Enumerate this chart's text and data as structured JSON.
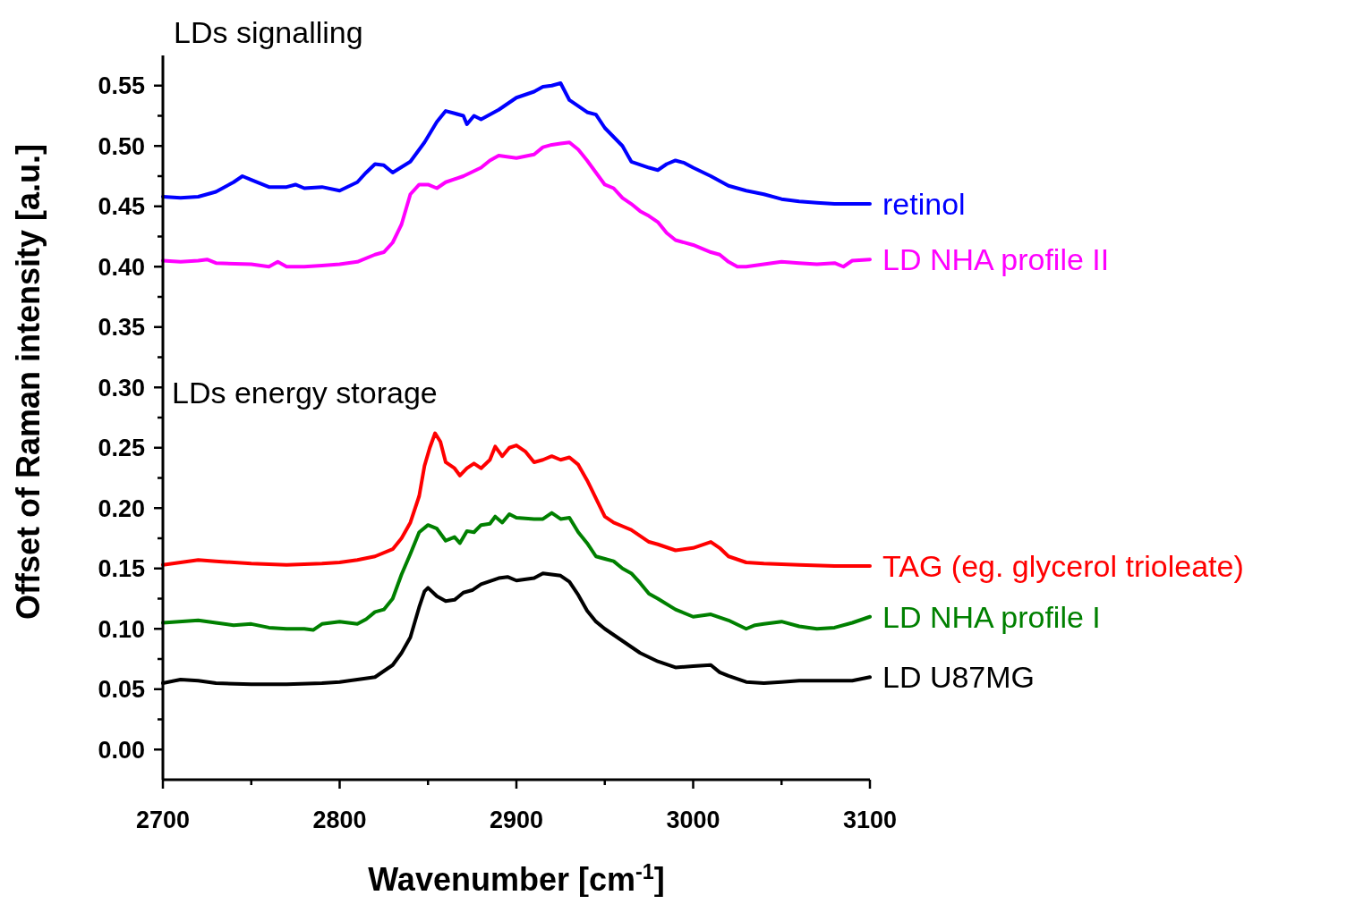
{
  "chart_data": {
    "type": "line",
    "xlabel": "Wavenumber [cm$^{-1}$]",
    "ylabel": "Offset of Raman intensity [a.u.]",
    "annotations": [
      "LDs signalling",
      "LDs energy storage"
    ],
    "xlim": [
      2700,
      3100
    ],
    "xticks": [
      2700,
      {
        "value": 2750,
        "label": null
      },
      2800,
      {
        "value": 2850,
        "label": null
      },
      2900,
      {
        "value": 2950,
        "label": null
      },
      3000,
      {
        "value": 3050,
        "label": null
      },
      3100
    ],
    "ylim": [
      -0.025,
      0.575
    ],
    "yticks": [
      {
        "value": 0,
        "label": "0.00"
      },
      {
        "value": 0.025,
        "label": null
      },
      {
        "value": 0.05,
        "label": "0.05"
      },
      {
        "value": 0.075,
        "label": null
      },
      {
        "value": 0.1,
        "label": "0.10"
      },
      {
        "value": 0.125,
        "label": null
      },
      {
        "value": 0.15,
        "label": "0.15"
      },
      {
        "value": 0.175,
        "label": null
      },
      {
        "value": 0.2,
        "label": "0.20"
      },
      {
        "value": 0.225,
        "label": null
      },
      {
        "value": 0.25,
        "label": "0.25"
      },
      {
        "value": 0.275,
        "label": null
      },
      {
        "value": 0.3,
        "label": "0.30"
      },
      {
        "value": 0.325,
        "label": null
      },
      {
        "value": 0.35,
        "label": "0.35"
      },
      {
        "value": 0.375,
        "label": null
      },
      {
        "value": 0.4,
        "label": "0.40"
      },
      {
        "value": 0.425,
        "label": null
      },
      {
        "value": 0.45,
        "label": "0.45"
      },
      {
        "value": 0.475,
        "label": null
      },
      {
        "value": 0.5,
        "label": "0.50"
      },
      {
        "value": 0.525,
        "label": null
      },
      {
        "value": 0.55,
        "label": "0.55"
      }
    ],
    "grid": false,
    "legend": false,
    "marker": "none",
    "line_style": "solid",
    "series": [
      {
        "name": "retinol",
        "color": "#0000ff",
        "x": [
          2700,
          2710,
          2720,
          2730,
          2740,
          2745,
          2750,
          2760,
          2770,
          2775,
          2780,
          2790,
          2800,
          2810,
          2815,
          2820,
          2825,
          2830,
          2840,
          2848,
          2855,
          2860,
          2865,
          2870,
          2872,
          2876,
          2880,
          2890,
          2900,
          2910,
          2915,
          2920,
          2925,
          2930,
          2935,
          2940,
          2945,
          2950,
          2960,
          2965,
          2975,
          2980,
          2985,
          2990,
          2995,
          3000,
          3010,
          3020,
          3030,
          3040,
          3050,
          3060,
          3070,
          3080,
          3090,
          3100
        ],
        "values": [
          0.458,
          0.457,
          0.458,
          0.462,
          0.47,
          0.475,
          0.472,
          0.466,
          0.466,
          0.468,
          0.465,
          0.466,
          0.463,
          0.47,
          0.478,
          0.485,
          0.484,
          0.478,
          0.487,
          0.503,
          0.52,
          0.529,
          0.527,
          0.525,
          0.518,
          0.525,
          0.522,
          0.53,
          0.54,
          0.545,
          0.549,
          0.55,
          0.552,
          0.538,
          0.533,
          0.528,
          0.526,
          0.515,
          0.5,
          0.487,
          0.482,
          0.48,
          0.485,
          0.488,
          0.486,
          0.482,
          0.475,
          0.467,
          0.463,
          0.46,
          0.456,
          0.454,
          0.453,
          0.452,
          0.452,
          0.452
        ]
      },
      {
        "name": "LD NHA profile II",
        "color": "#ff00ff",
        "x": [
          2700,
          2710,
          2720,
          2725,
          2730,
          2750,
          2760,
          2765,
          2770,
          2780,
          2790,
          2800,
          2810,
          2820,
          2825,
          2830,
          2835,
          2840,
          2845,
          2850,
          2855,
          2860,
          2870,
          2880,
          2885,
          2890,
          2900,
          2910,
          2915,
          2920,
          2925,
          2930,
          2935,
          2940,
          2945,
          2950,
          2955,
          2960,
          2965,
          2970,
          2975,
          2980,
          2985,
          2990,
          3000,
          3010,
          3015,
          3020,
          3025,
          3030,
          3040,
          3050,
          3060,
          3070,
          3080,
          3085,
          3090,
          3100
        ],
        "values": [
          0.405,
          0.404,
          0.405,
          0.406,
          0.403,
          0.402,
          0.4,
          0.404,
          0.4,
          0.4,
          0.401,
          0.402,
          0.404,
          0.41,
          0.412,
          0.42,
          0.435,
          0.46,
          0.468,
          0.468,
          0.465,
          0.47,
          0.475,
          0.482,
          0.488,
          0.492,
          0.49,
          0.493,
          0.499,
          0.501,
          0.502,
          0.503,
          0.497,
          0.488,
          0.478,
          0.468,
          0.465,
          0.457,
          0.452,
          0.446,
          0.442,
          0.437,
          0.428,
          0.422,
          0.418,
          0.412,
          0.41,
          0.404,
          0.4,
          0.4,
          0.402,
          0.404,
          0.403,
          0.402,
          0.403,
          0.4,
          0.405,
          0.406
        ]
      },
      {
        "name": "TAG (eg. glycerol trioleate)",
        "color": "#ff0000",
        "x": [
          2700,
          2720,
          2730,
          2750,
          2770,
          2790,
          2800,
          2810,
          2820,
          2830,
          2835,
          2840,
          2845,
          2848,
          2851,
          2854,
          2857,
          2860,
          2865,
          2868,
          2872,
          2876,
          2880,
          2885,
          2888,
          2892,
          2896,
          2900,
          2905,
          2910,
          2915,
          2920,
          2925,
          2930,
          2935,
          2940,
          2945,
          2950,
          2955,
          2960,
          2965,
          2970,
          2975,
          2980,
          2990,
          3000,
          3010,
          3015,
          3020,
          3030,
          3040,
          3060,
          3080,
          3100
        ],
        "values": [
          0.153,
          0.157,
          0.156,
          0.154,
          0.153,
          0.154,
          0.155,
          0.157,
          0.16,
          0.166,
          0.175,
          0.188,
          0.21,
          0.235,
          0.25,
          0.262,
          0.255,
          0.238,
          0.233,
          0.227,
          0.233,
          0.237,
          0.233,
          0.24,
          0.251,
          0.243,
          0.25,
          0.252,
          0.247,
          0.238,
          0.24,
          0.243,
          0.24,
          0.242,
          0.236,
          0.223,
          0.208,
          0.193,
          0.188,
          0.185,
          0.182,
          0.177,
          0.172,
          0.17,
          0.165,
          0.167,
          0.172,
          0.167,
          0.16,
          0.155,
          0.154,
          0.153,
          0.152,
          0.152
        ]
      },
      {
        "name": "LD NHA profile I",
        "color": "#008000",
        "x": [
          2700,
          2720,
          2730,
          2740,
          2750,
          2760,
          2770,
          2780,
          2785,
          2790,
          2800,
          2810,
          2815,
          2820,
          2825,
          2830,
          2835,
          2840,
          2845,
          2850,
          2855,
          2860,
          2865,
          2868,
          2872,
          2876,
          2880,
          2885,
          2888,
          2892,
          2896,
          2900,
          2910,
          2915,
          2920,
          2925,
          2930,
          2935,
          2940,
          2945,
          2950,
          2955,
          2960,
          2965,
          2970,
          2975,
          2980,
          2990,
          3000,
          3010,
          3020,
          3030,
          3035,
          3040,
          3050,
          3060,
          3070,
          3080,
          3090,
          3100
        ],
        "values": [
          0.105,
          0.107,
          0.105,
          0.103,
          0.104,
          0.101,
          0.1,
          0.1,
          0.099,
          0.104,
          0.106,
          0.104,
          0.108,
          0.114,
          0.116,
          0.125,
          0.145,
          0.162,
          0.18,
          0.186,
          0.183,
          0.173,
          0.176,
          0.171,
          0.181,
          0.18,
          0.186,
          0.187,
          0.193,
          0.188,
          0.195,
          0.192,
          0.191,
          0.191,
          0.196,
          0.191,
          0.192,
          0.18,
          0.171,
          0.16,
          0.158,
          0.156,
          0.15,
          0.146,
          0.138,
          0.129,
          0.125,
          0.116,
          0.11,
          0.112,
          0.107,
          0.1,
          0.103,
          0.104,
          0.106,
          0.102,
          0.1,
          0.101,
          0.105,
          0.11
        ]
      },
      {
        "name": "LD U87MG",
        "color": "#000000",
        "x": [
          2700,
          2710,
          2720,
          2730,
          2750,
          2770,
          2790,
          2800,
          2810,
          2820,
          2830,
          2835,
          2840,
          2845,
          2848,
          2850,
          2855,
          2860,
          2865,
          2870,
          2875,
          2880,
          2890,
          2895,
          2900,
          2910,
          2915,
          2920,
          2925,
          2930,
          2935,
          2940,
          2945,
          2950,
          2960,
          2970,
          2980,
          2990,
          3000,
          3010,
          3015,
          3020,
          3030,
          3040,
          3050,
          3060,
          3080,
          3090,
          3100
        ],
        "values": [
          0.055,
          0.058,
          0.057,
          0.055,
          0.054,
          0.054,
          0.055,
          0.056,
          0.058,
          0.06,
          0.07,
          0.08,
          0.093,
          0.118,
          0.131,
          0.134,
          0.127,
          0.123,
          0.124,
          0.13,
          0.132,
          0.137,
          0.142,
          0.143,
          0.14,
          0.142,
          0.146,
          0.145,
          0.144,
          0.139,
          0.128,
          0.115,
          0.106,
          0.1,
          0.09,
          0.08,
          0.073,
          0.068,
          0.069,
          0.07,
          0.064,
          0.061,
          0.056,
          0.055,
          0.056,
          0.057,
          0.057,
          0.057,
          0.06
        ]
      }
    ]
  }
}
